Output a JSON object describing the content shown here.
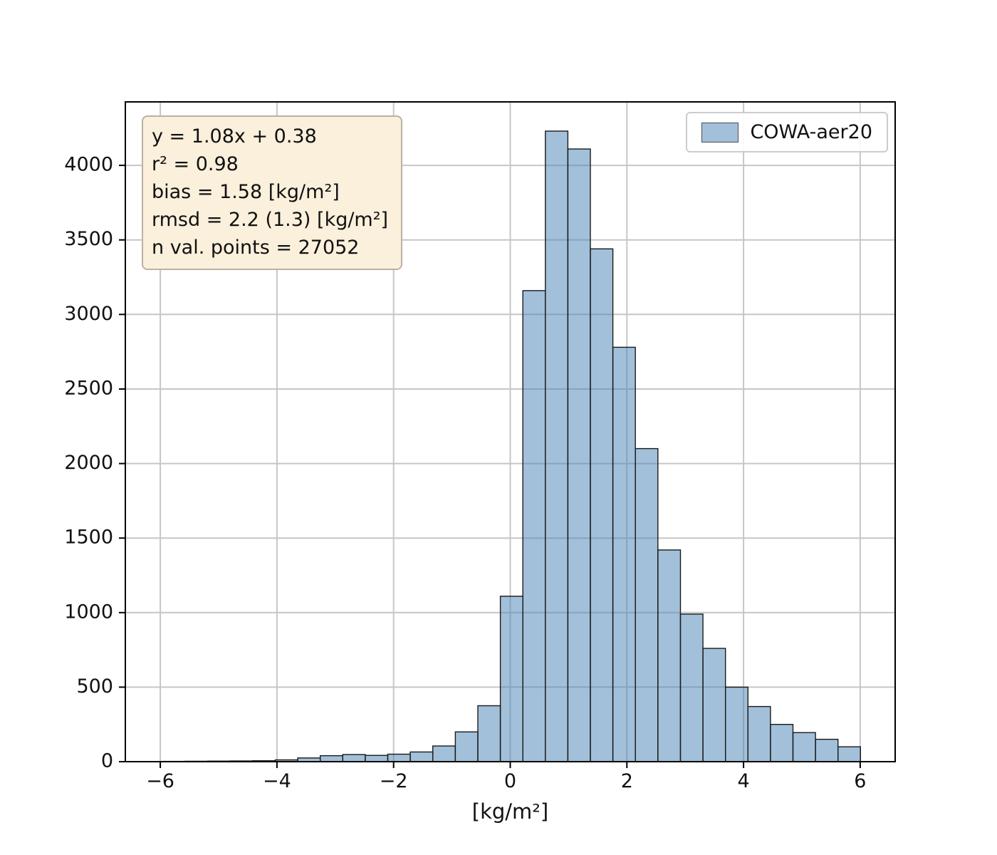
{
  "chart_data": {
    "type": "bar",
    "subtype": "histogram",
    "title": "",
    "xlabel": "[kg/m²]",
    "ylabel": "",
    "xlim": [
      -6.6,
      6.6
    ],
    "ylim": [
      0,
      4426
    ],
    "grid": true,
    "grid_color": "#c6c6c6",
    "frame_color": "#000000",
    "bar_fill": "#4682b4",
    "bar_fill_alpha": 0.5,
    "bar_edge": "#1a1a1a",
    "xticks": [
      {
        "v": -6,
        "label": "−6"
      },
      {
        "v": -4,
        "label": "−4"
      },
      {
        "v": -2,
        "label": "−2"
      },
      {
        "v": 0,
        "label": "0"
      },
      {
        "v": 2,
        "label": "2"
      },
      {
        "v": 4,
        "label": "4"
      },
      {
        "v": 6,
        "label": "6"
      }
    ],
    "yticks": [
      {
        "v": 0,
        "label": "0"
      },
      {
        "v": 500,
        "label": "500"
      },
      {
        "v": 1000,
        "label": "1000"
      },
      {
        "v": 1500,
        "label": "1500"
      },
      {
        "v": 2000,
        "label": "2000"
      },
      {
        "v": 2500,
        "label": "2500"
      },
      {
        "v": 3000,
        "label": "3000"
      },
      {
        "v": 3500,
        "label": "3500"
      },
      {
        "v": 4000,
        "label": "4000"
      }
    ],
    "bins": {
      "start": -5.96,
      "width": 0.386
    },
    "counts": [
      2,
      3,
      4,
      5,
      6,
      12,
      25,
      40,
      48,
      42,
      50,
      65,
      105,
      200,
      375,
      1110,
      3160,
      4230,
      4110,
      3440,
      2780,
      2100,
      1420,
      990,
      760,
      500,
      370,
      250,
      195,
      150,
      100
    ],
    "legend": {
      "label": "COWA-aer20",
      "position": "upper right"
    },
    "stats_box": {
      "lines": [
        "y = 1.08x + 0.38",
        "r² = 0.98",
        "bias = 1.58 [kg/m²]",
        "rmsd = 2.2 (1.3) [kg/m²]",
        "n val. points = 27052"
      ],
      "bg": "#faf0dc",
      "border": "#bab2a1"
    }
  }
}
